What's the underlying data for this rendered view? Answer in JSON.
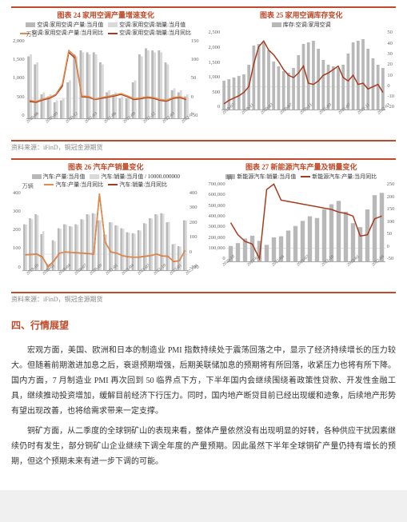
{
  "colors": {
    "accent": "#c04a2a",
    "bar1": "#b8b8b8",
    "bar2": "#d9d9d9",
    "line1": "#e38b4a",
    "line2": "#a83a1f",
    "text": "#333333",
    "source_text": "#888888"
  },
  "chart24": {
    "title": "图表 24 家用空调产量增速变化",
    "unit": "万台",
    "legend": [
      {
        "label": "空调:家用空调:产量:当月值",
        "color": "#b8b8b8",
        "type": "bar"
      },
      {
        "label": "空调:家用空调:销量:当月值",
        "color": "#d9d9d9",
        "type": "bar"
      },
      {
        "label": "空调:家用空调:产量:当月同比",
        "color": "#e38b4a",
        "type": "line"
      },
      {
        "label": "空调:家用空调:销量:当月同比",
        "color": "#a83a1f",
        "type": "line"
      }
    ],
    "x": [
      "2020-06",
      "2020-09",
      "2020-12",
      "2021-03",
      "2021-06",
      "2021-09",
      "2021-12",
      "2022-03",
      "2022-06"
    ],
    "yL": {
      "min": 0,
      "max": 2000,
      "ticks": [
        "2,000",
        "1,500",
        "1,000",
        "500",
        "0"
      ]
    },
    "yR": {
      "min": -50,
      "max": 150,
      "ticks": [
        "150",
        "100",
        "50",
        "0",
        "-50"
      ]
    },
    "bar1": [
      1550,
      1350,
      600,
      550,
      400,
      450,
      900,
      1600,
      1700,
      1650,
      1650,
      1400,
      650,
      600,
      500,
      500,
      900,
      1600,
      1750,
      1700,
      1700,
      1400,
      700,
      650,
      550
    ],
    "bar2": [
      1600,
      1400,
      650,
      600,
      450,
      500,
      950,
      1550,
      1650,
      1600,
      1600,
      1350,
      700,
      650,
      550,
      550,
      950,
      1550,
      1700,
      1650,
      1650,
      1350,
      750,
      700,
      600
    ],
    "line1": [
      -5,
      -8,
      -2,
      2,
      10,
      35,
      120,
      105,
      6,
      5,
      -2,
      2,
      5,
      8,
      12,
      6,
      -1,
      1,
      4,
      2,
      -3,
      -5,
      2,
      4,
      -1
    ],
    "line2": [
      -8,
      -10,
      -4,
      0,
      8,
      30,
      115,
      100,
      4,
      3,
      -3,
      0,
      3,
      6,
      10,
      4,
      -3,
      -1,
      2,
      0,
      -5,
      -7,
      0,
      2,
      -3
    ]
  },
  "chart25": {
    "title": "图表 25 家用空调库存变化",
    "legend": [
      {
        "label": "库存:空调:家用空调",
        "color": "#b8b8b8",
        "type": "bar"
      },
      {
        "label": "",
        "color": "#a83a1f",
        "type": "line"
      }
    ],
    "x": [
      "2019-07",
      "2019-11",
      "2020-03",
      "2020-07",
      "2020-11",
      "2021-03",
      "2021-07",
      "2021-11",
      "2022-03"
    ],
    "yL": {
      "min": 0,
      "max": 2500,
      "ticks": [
        "2,500",
        "2,000",
        "1,500",
        "1,000",
        "500",
        "0"
      ]
    },
    "yR": {
      "min": -20,
      "max": 50,
      "ticks": [
        "50",
        "40",
        "30",
        "20",
        "10",
        "0",
        "-10",
        "-20"
      ]
    },
    "bar1": [
      900,
      950,
      1000,
      1050,
      1100,
      1400,
      2000,
      2050,
      2100,
      1850,
      1500,
      1350,
      1200,
      1150,
      1300,
      1700,
      2050,
      2100,
      2150,
      1900,
      1550,
      1400,
      1350,
      1300,
      1400,
      1750,
      2100,
      2150,
      2200,
      1900,
      1600,
      1400,
      1300
    ],
    "line1": [
      -15,
      -12,
      -10,
      -8,
      -5,
      0,
      20,
      35,
      40,
      32,
      28,
      22,
      15,
      10,
      8,
      12,
      18,
      3,
      2,
      5,
      10,
      12,
      15,
      18,
      8,
      5,
      10,
      2,
      3,
      -2,
      0,
      2,
      -5
    ]
  },
  "chart26": {
    "title": "图表 26 汽车产销量变化",
    "unit": "万辆",
    "legend": [
      {
        "label": "汽车:产量:当月值",
        "color": "#b8b8b8",
        "type": "bar"
      },
      {
        "label": "汽车:销量:当月值 / 10000.000000",
        "color": "#d9d9d9",
        "type": "bar"
      },
      {
        "label": "汽车:产量:当月同比",
        "color": "#e38b4a",
        "type": "line"
      },
      {
        "label": "汽车:销量:当月同比",
        "color": "#a83a1f",
        "type": "line"
      }
    ],
    "x": [
      "2019-10",
      "2020-01",
      "2020-04",
      "2020-07",
      "2020-10",
      "2021-01",
      "2021-04",
      "2021-07",
      "2021-10",
      "2022-01",
      "2022-04"
    ],
    "yL": {
      "min": 0,
      "max": 400,
      "ticks": [
        "400",
        "300",
        "200",
        "100",
        "0"
      ]
    },
    "yR": {
      "min": -100,
      "max": 400,
      "ticks": [
        "400",
        "300",
        "200",
        "100",
        "0",
        "-100"
      ]
    },
    "bar1": [
      230,
      260,
      280,
      180,
      30,
      150,
      210,
      230,
      220,
      230,
      255,
      280,
      285,
      250,
      180,
      240,
      225,
      210,
      190,
      185,
      200,
      235,
      260,
      280,
      285,
      240,
      130,
      120,
      250
    ],
    "bar2": [
      228,
      255,
      275,
      195,
      32,
      145,
      208,
      228,
      218,
      227,
      253,
      278,
      283,
      250,
      178,
      238,
      223,
      208,
      188,
      183,
      198,
      233,
      258,
      278,
      283,
      242,
      132,
      118,
      248
    ],
    "line1": [
      -5,
      -3,
      0,
      -20,
      -80,
      -45,
      5,
      15,
      12,
      10,
      8,
      5,
      2,
      380,
      75,
      15,
      8,
      -8,
      -15,
      -18,
      -17,
      -12,
      -8,
      2,
      -10,
      -12,
      -45,
      -40,
      25
    ],
    "line2": [
      -4,
      -2,
      1,
      -18,
      -78,
      -43,
      6,
      14,
      11,
      9,
      7,
      4,
      1,
      375,
      76,
      14,
      7,
      -9,
      -16,
      -19,
      -18,
      -13,
      -9,
      1,
      -11,
      -13,
      -46,
      -41,
      24
    ]
  },
  "chart27": {
    "title": "图表 27 新能源汽车产量及销量变化",
    "unit": "辆",
    "legend": [
      {
        "label": "新能源汽车:销量:当月值",
        "color": "#b8b8b8",
        "type": "bar"
      },
      {
        "label": "新能源汽车:产量:当月同比",
        "color": "#a83a1f",
        "type": "line"
      }
    ],
    "x": [
      "2020-10",
      "2021-01",
      "2021-04",
      "2021-07",
      "2021-10",
      "2022-01",
      "2022-04"
    ],
    "yL": {
      "min": 0,
      "max": 700000,
      "ticks": [
        "700,000",
        "600,000",
        "500,000",
        "400,000",
        "300,000",
        "200,000",
        "100,000",
        "0"
      ]
    },
    "yR": {
      "min": -50,
      "max": 250,
      "ticks": [
        "250",
        "200",
        "150",
        "100",
        "50",
        "0",
        "-50"
      ]
    },
    "bar1": [
      135000,
      160000,
      200000,
      225000,
      180000,
      145000,
      210000,
      220000,
      270000,
      310000,
      355000,
      395000,
      380000,
      455000,
      500000,
      530000,
      435000,
      335000,
      300000,
      455000,
      580000,
      600000
    ],
    "line1": [
      95,
      50,
      25,
      15,
      -40,
      220,
      240,
      180,
      175,
      170,
      165,
      160,
      155,
      150,
      145,
      135,
      130,
      120,
      45,
      50,
      110,
      120
    ]
  },
  "source": "资料来源：iFinD，铜冠金源期货",
  "section": {
    "heading": "四、行情展望",
    "p1": "宏观方面，美国、欧洲和日本的制造业 PMI 指数持续处于震荡回落之中，显示了经济持续增长的压力较大。但随着前期激进加息之后，衰退预期增强，后期美联储加息的预期将有所回落，收紧压力也将有所下降。国内方面，7 月制造业 PMI 再次回到 50 临界点下方，下半年国内会继续围绕着政策性贷款、开发性金融工具，继续推动投资增加，缓解目前经济下行压力。同时，国内地产断贷目前已经出现缓和迹象，后续地产形势有望出现改善，也将给需求带来一定支撑。",
    "p2": "铜矿方面，从二季度的全球铜矿山的表现来看，整体产量依然没有出现明显的好转，各种供应干扰因素继续仍时有发生，部分铜矿山企业继续下调全年度的产量预期。因此虽然下半年全球铜矿产量仍持有增长的预期，但这个预期未来有进一步下调的可能。"
  }
}
